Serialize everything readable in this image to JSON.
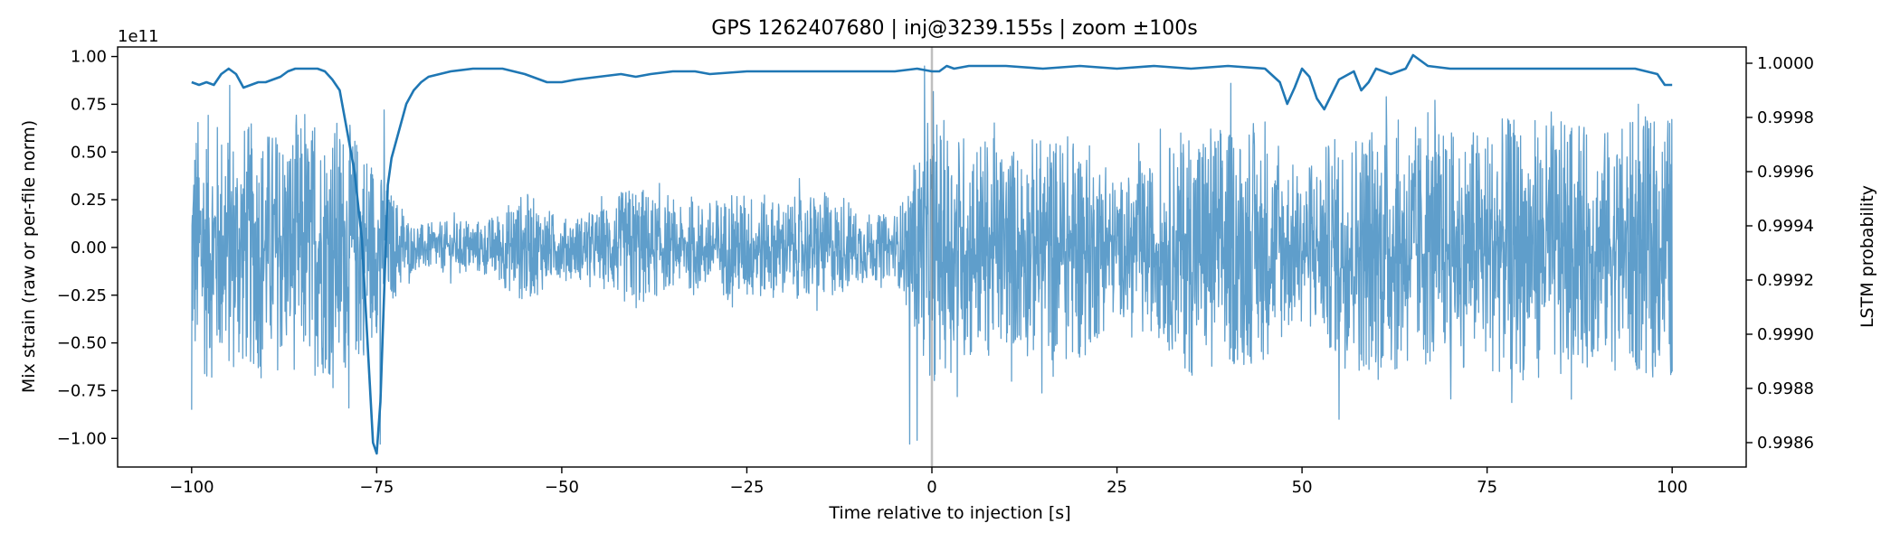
{
  "chart_data": {
    "type": "line",
    "title": "GPS 1262407680 | inj@3239.155s | zoom ±100s",
    "xlabel": "Time relative to injection [s]",
    "ylabel_left": "Mix strain (raw or per-file norm)",
    "ylabel_right": "LSTM probability",
    "left_axis_multiplier": "1e11",
    "xlim": [
      -110,
      110
    ],
    "ylim_left": [
      -1.15,
      1.05
    ],
    "ylim_right": [
      0.99851,
      1.00006
    ],
    "x_ticks": [
      -100,
      -75,
      -50,
      -25,
      0,
      25,
      50,
      75,
      100
    ],
    "x_tick_labels": [
      "−100",
      "−75",
      "−50",
      "−25",
      "0",
      "25",
      "50",
      "75",
      "100"
    ],
    "y_left_ticks": [
      1.0,
      0.75,
      0.5,
      0.25,
      0.0,
      -0.25,
      -0.5,
      -0.75,
      -1.0
    ],
    "y_left_tick_labels": [
      "1.00",
      "0.75",
      "0.50",
      "0.25",
      "0.00",
      "−0.25",
      "−0.50",
      "−0.75",
      "−1.00"
    ],
    "y_right_ticks": [
      1.0,
      0.9998,
      0.9996,
      0.9994,
      0.9992,
      0.999,
      0.9988,
      0.9986
    ],
    "y_right_tick_labels": [
      "1.0000",
      "0.9998",
      "0.9996",
      "0.9994",
      "0.9992",
      "0.9990",
      "0.9988",
      "0.9986"
    ],
    "injection_marker_x": 0,
    "grid": false,
    "series": [
      {
        "axis": "left",
        "color": "#5f9ecb",
        "x_range": [
          -100,
          100
        ],
        "envelope": {
          "x": [
            -100,
            -95,
            -90,
            -85,
            -80,
            -76,
            -74,
            -72,
            -70,
            -65,
            -60,
            -55,
            -50,
            -45,
            -40,
            -35,
            -30,
            -25,
            -20,
            -15,
            -10,
            -5,
            -1,
            0,
            1,
            5,
            10,
            15,
            20,
            25,
            30,
            35,
            40,
            45,
            50,
            55,
            60,
            65,
            70,
            75,
            80,
            85,
            90,
            95,
            100
          ],
          "amp": [
            0.72,
            0.68,
            0.65,
            0.66,
            0.7,
            0.55,
            0.35,
            0.25,
            0.12,
            0.14,
            0.15,
            0.3,
            0.15,
            0.2,
            0.35,
            0.2,
            0.25,
            0.3,
            0.25,
            0.3,
            0.2,
            0.15,
            0.6,
            0.72,
            0.68,
            0.62,
            0.55,
            0.6,
            0.62,
            0.35,
            0.45,
            0.68,
            0.66,
            0.6,
            0.4,
            0.62,
            0.7,
            0.66,
            0.62,
            0.66,
            0.7,
            0.66,
            0.62,
            0.68,
            0.72
          ]
        },
        "extremes": {
          "max": [
            [
              -100,
              0.79
            ],
            [
              -74,
              0.72
            ],
            [
              -1,
              0.95
            ],
            [
              100,
              0.82
            ]
          ],
          "min": [
            [
              -100,
              -0.85
            ],
            [
              -74.5,
              -1.03
            ],
            [
              -3,
              -1.03
            ],
            [
              -2,
              -1.01
            ],
            [
              55,
              -0.9
            ],
            [
              100,
              -0.65
            ]
          ]
        }
      },
      {
        "axis": "right",
        "color": "#1f77b4",
        "x": [
          -100,
          -99,
          -98,
          -97,
          -96,
          -95,
          -94,
          -93,
          -92,
          -91,
          -90,
          -89,
          -88,
          -87,
          -86,
          -85,
          -84,
          -83,
          -82,
          -81,
          -80,
          -79,
          -78,
          -77,
          -76.5,
          -76,
          -75.5,
          -75,
          -74.5,
          -74,
          -73.5,
          -73,
          -72.5,
          -72,
          -71,
          -70,
          -69,
          -68,
          -65,
          -62,
          -60,
          -58,
          -55,
          -52,
          -50,
          -48,
          -45,
          -42,
          -40,
          -38,
          -35,
          -32,
          -30,
          -25,
          -20,
          -15,
          -10,
          -5,
          -2,
          0,
          1,
          2,
          3,
          5,
          10,
          15,
          20,
          25,
          30,
          35,
          40,
          45,
          47,
          48,
          49,
          50,
          51,
          52,
          53,
          55,
          57,
          58,
          59,
          60,
          62,
          64,
          65,
          67,
          70,
          75,
          80,
          85,
          90,
          95,
          98,
          99,
          100
        ],
        "y": [
          0.99993,
          0.99992,
          0.99993,
          0.99992,
          0.99996,
          0.99998,
          0.99996,
          0.99991,
          0.99992,
          0.99993,
          0.99993,
          0.99994,
          0.99995,
          0.99997,
          0.99998,
          0.99998,
          0.99998,
          0.99998,
          0.99997,
          0.99994,
          0.9999,
          0.99975,
          0.9996,
          0.99935,
          0.9991,
          0.99885,
          0.9986,
          0.99856,
          0.99875,
          0.99915,
          0.99955,
          0.99965,
          0.9997,
          0.99975,
          0.99985,
          0.9999,
          0.99993,
          0.99995,
          0.99997,
          0.99998,
          0.99998,
          0.99998,
          0.99996,
          0.99993,
          0.99993,
          0.99994,
          0.99995,
          0.99996,
          0.99995,
          0.99996,
          0.99997,
          0.99997,
          0.99996,
          0.99997,
          0.99997,
          0.99997,
          0.99997,
          0.99997,
          0.99998,
          0.99997,
          0.99997,
          0.99999,
          0.99998,
          0.99999,
          0.99999,
          0.99998,
          0.99999,
          0.99998,
          0.99999,
          0.99998,
          0.99999,
          0.99998,
          0.99993,
          0.99985,
          0.99991,
          0.99998,
          0.99995,
          0.99987,
          0.99983,
          0.99994,
          0.99997,
          0.9999,
          0.99993,
          0.99998,
          0.99996,
          0.99998,
          1.00003,
          0.99999,
          0.99998,
          0.99998,
          0.99998,
          0.99998,
          0.99998,
          0.99998,
          0.99996,
          0.99992,
          0.99992
        ]
      }
    ]
  }
}
